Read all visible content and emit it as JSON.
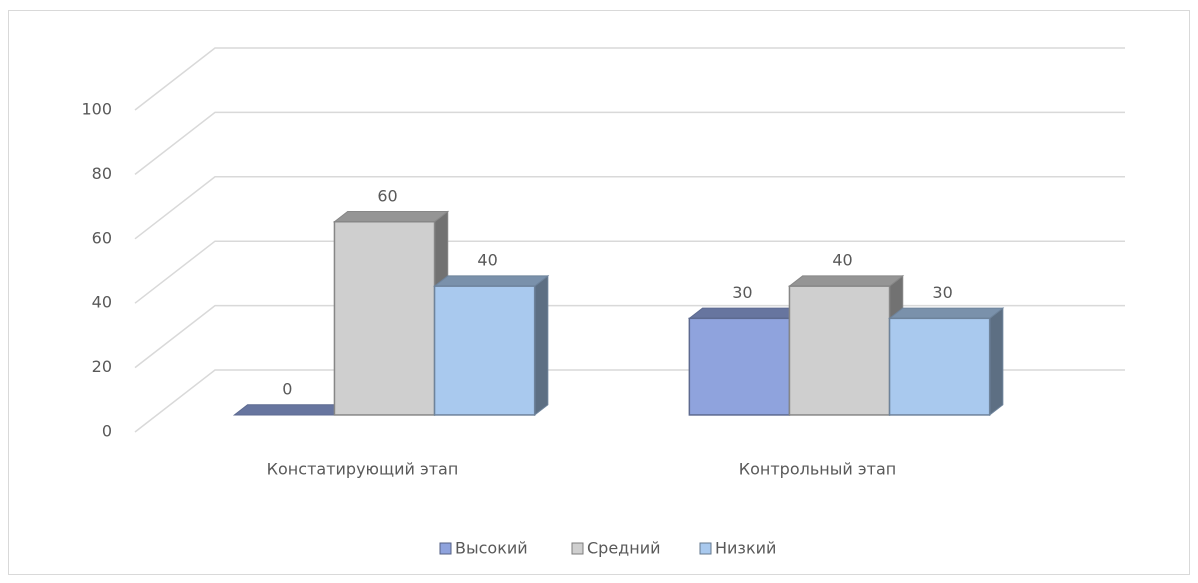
{
  "chart_data": {
    "type": "bar3d",
    "categories": [
      "Констатирующий этап",
      "Контрольный этап"
    ],
    "series": [
      {
        "name": "Высокий",
        "color": "#8fa3dd",
        "values": [
          0,
          30
        ]
      },
      {
        "name": "Средний",
        "color": "#cfcfcf",
        "values": [
          60,
          40
        ]
      },
      {
        "name": "Низкий",
        "color": "#a9c9ee",
        "values": [
          40,
          30
        ]
      }
    ],
    "ylim": [
      0,
      100
    ],
    "yticks": [
      0,
      20,
      40,
      60,
      80,
      100
    ],
    "grid": true,
    "legend": "bottom"
  }
}
